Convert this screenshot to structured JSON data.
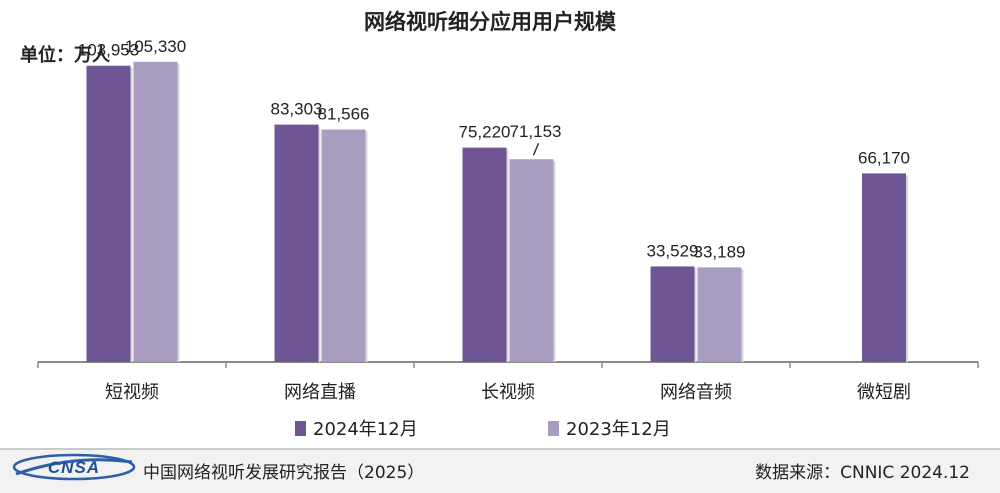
{
  "chart_data": {
    "type": "bar",
    "title": "网络视听细分应用用户规模",
    "unit_label": "单位：万人",
    "categories": [
      "短视频",
      "网络直播",
      "长视频",
      "网络音频",
      "微短剧"
    ],
    "series": [
      {
        "name": "2024年12月",
        "color": "#6f5593",
        "values": [
          103953,
          83303,
          75220,
          33529,
          66170
        ],
        "labels": [
          "103,953",
          "83,303",
          "75,220",
          "33,529",
          "66,170"
        ]
      },
      {
        "name": "2023年12月",
        "color": "#a89cc0",
        "values": [
          105330,
          81566,
          71153,
          33189,
          null
        ],
        "labels": [
          "105,330",
          "81,566",
          "71,153",
          "33,189",
          ""
        ]
      }
    ],
    "ylim": [
      0,
      120000
    ],
    "grid": false,
    "legend": "bottom"
  },
  "footer": {
    "logo_text": "CNSA",
    "report_name": "中国网络视听发展研究报告（2025）",
    "source": "数据来源：CNNIC  2024.12"
  }
}
